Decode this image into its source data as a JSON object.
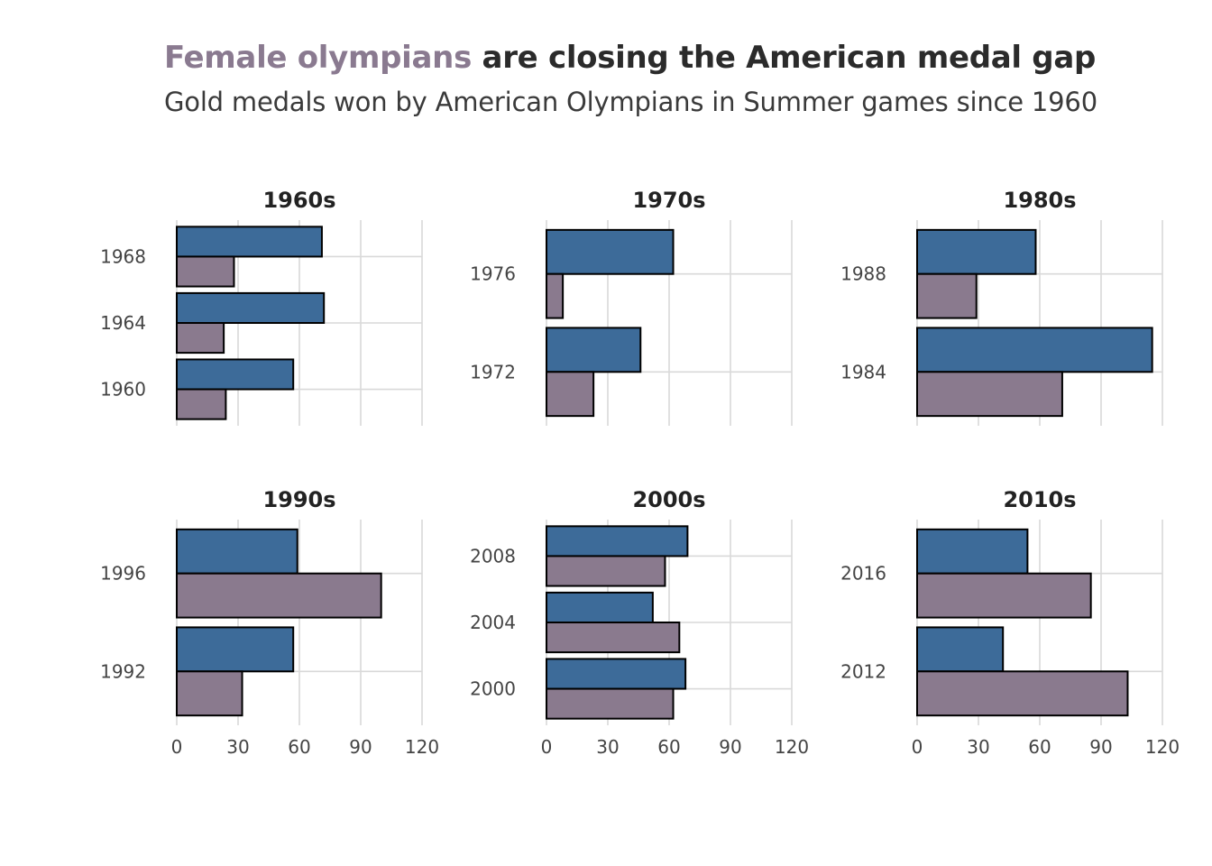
{
  "header": {
    "title_highlight": "Female olympians",
    "title_rest": " are closing the American medal gap",
    "subtitle": "Gold medals won by American Olympians in Summer games since 1960"
  },
  "colors": {
    "men": "#3d6b99",
    "women": "#8a7a8e",
    "outline": "#000000",
    "grid": "#d9d9d9",
    "title_accent": "#8a7a90"
  },
  "chart_data": {
    "type": "bar",
    "orientation": "horizontal",
    "facets": [
      {
        "label": "1960s",
        "years": [
          {
            "year": "1968",
            "men": 71,
            "women": 28
          },
          {
            "year": "1964",
            "men": 72,
            "women": 23
          },
          {
            "year": "1960",
            "men": 57,
            "women": 24
          }
        ]
      },
      {
        "label": "1970s",
        "years": [
          {
            "year": "1976",
            "men": 62,
            "women": 8
          },
          {
            "year": "1972",
            "men": 46,
            "women": 23
          }
        ]
      },
      {
        "label": "1980s",
        "years": [
          {
            "year": "1988",
            "men": 58,
            "women": 29
          },
          {
            "year": "1984",
            "men": 115,
            "women": 71
          }
        ]
      },
      {
        "label": "1990s",
        "years": [
          {
            "year": "1996",
            "men": 59,
            "women": 100
          },
          {
            "year": "1992",
            "men": 57,
            "women": 32
          }
        ]
      },
      {
        "label": "2000s",
        "years": [
          {
            "year": "2008",
            "men": 69,
            "women": 58
          },
          {
            "year": "2004",
            "men": 52,
            "women": 65
          },
          {
            "year": "2000",
            "men": 68,
            "women": 62
          }
        ]
      },
      {
        "label": "2010s",
        "years": [
          {
            "year": "2016",
            "men": 54,
            "women": 85
          },
          {
            "year": "2012",
            "men": 42,
            "women": 103
          }
        ]
      }
    ],
    "x_ticks": [
      0,
      30,
      60,
      90,
      120
    ],
    "xlim": [
      0,
      120
    ],
    "grid": true,
    "legend": "none"
  }
}
